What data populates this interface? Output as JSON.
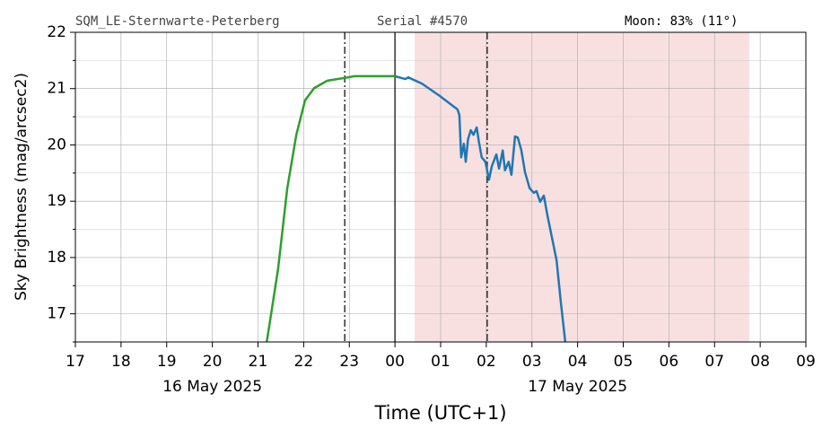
{
  "chart_data": {
    "type": "line",
    "header": {
      "station": "SQM_LE-Sternwarte-Peterberg",
      "serial": "Serial #4570",
      "moon": "Moon: 83% (11°)"
    },
    "xlabel": "Time (UTC+1)",
    "ylabel": "Sky Brightness (mag/arcsec2)",
    "xlim": [
      17,
      33
    ],
    "ylim": [
      16.5,
      22
    ],
    "xticks": [
      17,
      18,
      19,
      20,
      21,
      22,
      23,
      {
        "value": 24,
        "label": "00"
      },
      {
        "value": 25,
        "label": "01"
      },
      {
        "value": 26,
        "label": "02"
      },
      {
        "value": 27,
        "label": "03"
      },
      {
        "value": 28,
        "label": "04"
      },
      {
        "value": 29,
        "label": "05"
      },
      {
        "value": 30,
        "label": "06"
      },
      {
        "value": 31,
        "label": "07"
      },
      {
        "value": 32,
        "label": "08"
      },
      {
        "value": 33,
        "label": "09"
      }
    ],
    "yticks": [
      17,
      18,
      19,
      20,
      21,
      22
    ],
    "yminor": [
      16.5,
      17.5,
      18.5,
      19.5,
      20.5,
      21.5
    ],
    "grid": true,
    "annotations": [
      {
        "text": "16 May 2025",
        "x": 20
      },
      {
        "text": "17 May 2025",
        "x": 28
      }
    ],
    "vlines": [
      {
        "x": 22.9,
        "style": "dashdot"
      },
      {
        "x": 24,
        "style": "solid"
      },
      {
        "x": 26.02,
        "style": "dashdot"
      }
    ],
    "shade": {
      "from": 24.43,
      "to": 31.76,
      "color": "#f9e0e0"
    },
    "series": [
      {
        "color": "#2ca02c",
        "x": [
          21.19,
          21.25,
          21.44,
          21.64,
          21.84,
          22.03,
          22.23,
          22.52,
          22.9,
          23.11,
          23.6,
          24
        ],
        "values": [
          16.5,
          16.8,
          17.8,
          19.23,
          20.18,
          20.79,
          21.01,
          21.14,
          21.19,
          21.22,
          21.22,
          21.22
        ]
      },
      {
        "color": "#1f77b4",
        "x": [
          24,
          24.23,
          24.29,
          24.59,
          24.98,
          25.37,
          25.41,
          25.45,
          25.51,
          25.55,
          25.6,
          25.66,
          25.72,
          25.79,
          25.84,
          25.9,
          25.98,
          26.06,
          26.12,
          26.22,
          26.28,
          26.36,
          26.41,
          26.49,
          26.55,
          26.63,
          26.69,
          26.77,
          26.85,
          26.95,
          27.04,
          27.1,
          27.18,
          27.26,
          27.34,
          27.44,
          27.54,
          27.63,
          27.73
        ],
        "values": [
          21.22,
          21.17,
          21.2,
          21.09,
          20.87,
          20.63,
          20.53,
          19.78,
          20.02,
          19.7,
          20.1,
          20.26,
          20.18,
          20.31,
          20.05,
          19.78,
          19.7,
          19.38,
          19.62,
          19.83,
          19.58,
          19.9,
          19.55,
          19.7,
          19.47,
          20.15,
          20.13,
          19.9,
          19.51,
          19.23,
          19.15,
          19.18,
          18.99,
          19.1,
          18.75,
          18.35,
          17.95,
          17.23,
          16.5
        ]
      }
    ]
  }
}
